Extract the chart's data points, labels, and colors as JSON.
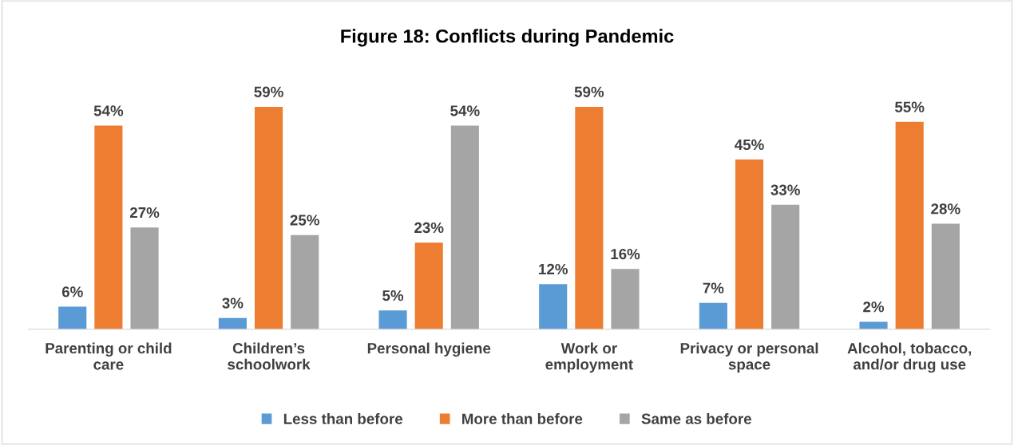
{
  "chart_data": {
    "type": "bar",
    "title": "Figure 18: Conflicts during Pandemic",
    "categories": [
      "Parenting or child\ncare",
      "Children’s\nschoolwork",
      "Personal hygiene",
      "Work or\nemployment",
      "Privacy or personal\nspace",
      "Alcohol, tobacco,\nand/or drug use"
    ],
    "series": [
      {
        "name": "Less than before",
        "color": "#5b9bd5",
        "values": [
          6,
          3,
          5,
          12,
          7,
          2
        ],
        "value_labels": [
          "6%",
          "3%",
          "5%",
          "12%",
          "7%",
          "2%"
        ]
      },
      {
        "name": "More than before",
        "color": "#ed7d31",
        "values": [
          54,
          59,
          23,
          59,
          45,
          55
        ],
        "value_labels": [
          "54%",
          "59%",
          "23%",
          "59%",
          "45%",
          "55%"
        ]
      },
      {
        "name": "Same as before",
        "color": "#a5a5a5",
        "values": [
          27,
          25,
          54,
          16,
          33,
          28
        ],
        "value_labels": [
          "27%",
          "25%",
          "54%",
          "16%",
          "33%",
          "28%"
        ]
      }
    ],
    "legend": "bottom",
    "grid": false
  }
}
